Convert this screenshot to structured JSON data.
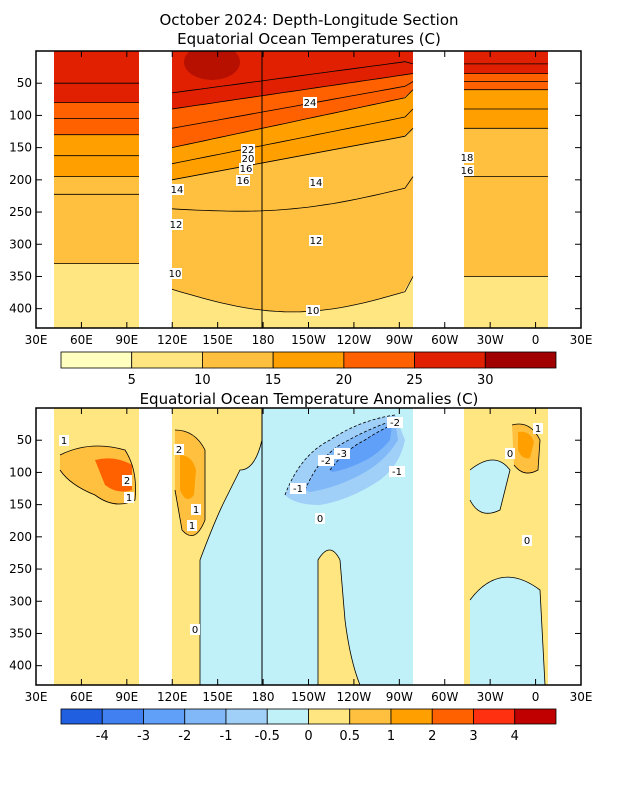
{
  "chart_data": [
    {
      "type": "heatmap",
      "title": "October 2024: Depth-Longitude Section",
      "subtitle": "Equatorial Ocean Temperatures (C)",
      "x_ticks": [
        "30E",
        "60E",
        "90E",
        "120E",
        "150E",
        "180",
        "150W",
        "120W",
        "90W",
        "60W",
        "30W",
        "0",
        "30E"
      ],
      "y_ticks": [
        "50",
        "100",
        "150",
        "200",
        "250",
        "300",
        "350",
        "400"
      ],
      "ylim": [
        430,
        0
      ],
      "contour_labels": [
        "24",
        "22",
        "20",
        "16",
        "16",
        "14",
        "14",
        "12",
        "12",
        "10",
        "10",
        "18",
        "16"
      ],
      "colorbar": {
        "labels": [
          "5",
          "10",
          "15",
          "20",
          "25",
          "30"
        ],
        "colors": [
          "#ffffc0",
          "#ffe680",
          "#ffc040",
          "#ffa000",
          "#ff6000",
          "#e02000",
          "#a00000"
        ]
      },
      "fill_colors": {
        "deep": "#ffe680",
        "mid": "#ffc040",
        "thermo": "#ffa000",
        "warm": "#ff6000",
        "hot": "#e02000",
        "hottest": "#b81000"
      }
    },
    {
      "type": "heatmap",
      "title": "Equatorial Ocean Temperature Anomalies (C)",
      "x_ticks": [
        "30E",
        "60E",
        "90E",
        "120E",
        "150E",
        "180",
        "150W",
        "120W",
        "90W",
        "60W",
        "30W",
        "0",
        "30E"
      ],
      "y_ticks": [
        "50",
        "100",
        "150",
        "200",
        "250",
        "300",
        "350",
        "400"
      ],
      "ylim": [
        430,
        0
      ],
      "contour_labels": [
        "1",
        "2",
        "1",
        "2",
        "1",
        "1",
        "0",
        "-2",
        "-2",
        "-3",
        "-1",
        "-1",
        "0",
        "0",
        "0",
        "1"
      ],
      "colorbar": {
        "labels": [
          "-4",
          "-3",
          "-2",
          "-1",
          "-0.5",
          "0",
          "0.5",
          "1",
          "2",
          "3",
          "4"
        ],
        "colors": [
          "#2060e0",
          "#4080f0",
          "#60a0f8",
          "#80b8f8",
          "#a0d0f8",
          "#c0f0f8",
          "#ffe680",
          "#ffc040",
          "#ffa000",
          "#ff6000",
          "#ff3010",
          "#c00000"
        ]
      },
      "fill_colors": {
        "neutral_pos": "#ffe680",
        "pos": "#ffc040",
        "pos_strong": "#ffa000",
        "pos_max": "#ff6000",
        "neutral_neg": "#c0f0f8",
        "neg": "#a0d0f8",
        "neg_strong": "#80b8f8",
        "neg_max": "#60a0f8"
      }
    }
  ]
}
